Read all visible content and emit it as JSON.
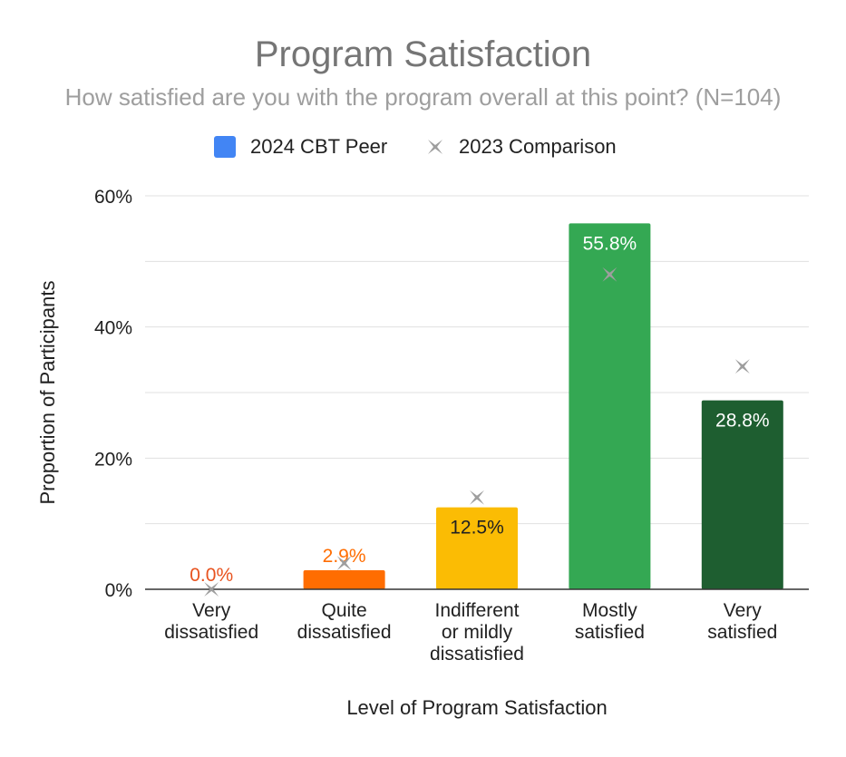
{
  "chart_data": {
    "type": "bar",
    "title": "Program Satisfaction",
    "subtitle": "How satisfied are you with the program overall at this point? (N=104)",
    "xlabel": "Level of Program Satisfaction",
    "ylabel": "Proportion of Participants",
    "ylim": [
      0,
      60
    ],
    "yticks": [
      "0%",
      "20%",
      "40%",
      "60%"
    ],
    "y_tick_values": [
      0,
      20,
      40,
      60
    ],
    "grid": true,
    "legend_position": "top",
    "categories": [
      [
        "Very",
        "dissatisfied"
      ],
      [
        "Quite",
        "dissatisfied"
      ],
      [
        "Indifferent",
        "or mildly",
        "dissatisfied"
      ],
      [
        "Mostly",
        "satisfied"
      ],
      [
        "Very",
        "satisfied"
      ]
    ],
    "series": [
      {
        "name": "2024 CBT Peer",
        "type": "bar",
        "legend_color": "#4285f4",
        "values": [
          0.0,
          2.9,
          12.5,
          55.8,
          28.8
        ],
        "labels": [
          "0.0%",
          "2.9%",
          "12.5%",
          "55.8%",
          "28.8%"
        ],
        "colors": [
          "#e8531f",
          "#ff6d01",
          "#fbbc04",
          "#34a853",
          "#1e5e30"
        ],
        "label_colors": [
          "#e8531f",
          "#ff6d01",
          "#212121",
          "#ffffff",
          "#ffffff"
        ]
      },
      {
        "name": "2023 Comparison",
        "type": "scatter",
        "marker": "x-star",
        "color": "#9e9e9e",
        "values": [
          0.0,
          4.0,
          14.0,
          48.0,
          34.0
        ]
      }
    ]
  }
}
